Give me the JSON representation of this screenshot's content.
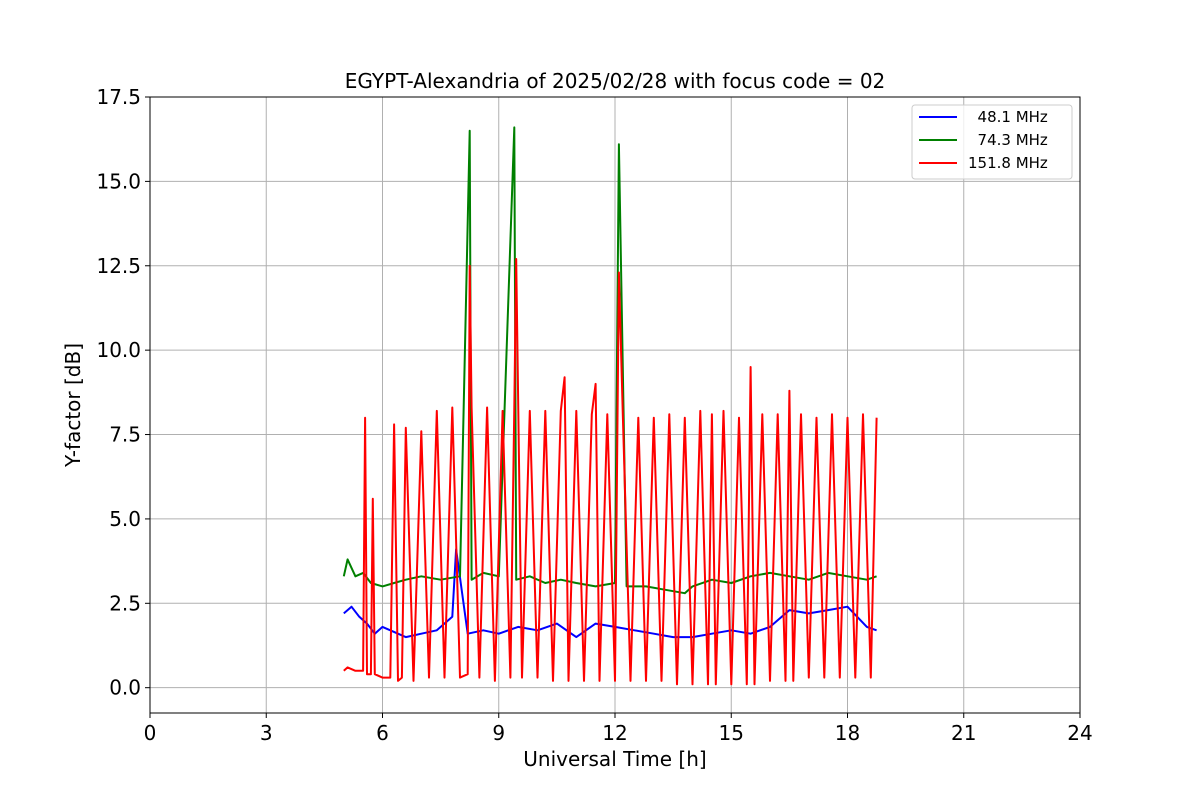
{
  "chart_data": {
    "type": "line",
    "title": "EGYPT-Alexandria of 2025/02/28 with focus code = 02",
    "xlabel": "Universal Time [h]",
    "ylabel": "Y-factor [dB]",
    "xlim": [
      0,
      24
    ],
    "ylim": [
      -0.75,
      17.5
    ],
    "xticks": [
      0,
      3,
      6,
      9,
      12,
      15,
      18,
      21,
      24
    ],
    "xtick_labels": [
      "0",
      "3",
      "6",
      "9",
      "12",
      "15",
      "18",
      "21",
      "24"
    ],
    "yticks": [
      0.0,
      2.5,
      5.0,
      7.5,
      10.0,
      12.5,
      15.0,
      17.5
    ],
    "ytick_labels": [
      "0.0",
      "2.5",
      "5.0",
      "7.5",
      "10.0",
      "12.5",
      "15.0",
      "17.5"
    ],
    "grid": true,
    "legend_position": "top-right",
    "series": [
      {
        "name": "48.1 MHz",
        "legend_label": "  48.1 MHz",
        "color": "#0000ff",
        "x": [
          5.0,
          5.2,
          5.4,
          5.6,
          5.8,
          6.0,
          6.2,
          6.4,
          6.6,
          7.0,
          7.4,
          7.8,
          7.9,
          8.2,
          8.6,
          9.0,
          9.5,
          10.0,
          10.5,
          11.0,
          11.5,
          12.0,
          12.5,
          13.0,
          13.5,
          14.0,
          14.5,
          15.0,
          15.5,
          16.0,
          16.5,
          17.0,
          17.5,
          18.0,
          18.5,
          18.75
        ],
        "values": [
          2.2,
          2.4,
          2.1,
          1.9,
          1.6,
          1.8,
          1.7,
          1.6,
          1.5,
          1.6,
          1.7,
          2.1,
          4.1,
          1.6,
          1.7,
          1.6,
          1.8,
          1.7,
          1.9,
          1.5,
          1.9,
          1.8,
          1.7,
          1.6,
          1.5,
          1.5,
          1.6,
          1.7,
          1.6,
          1.8,
          2.3,
          2.2,
          2.3,
          2.4,
          1.8,
          1.7
        ]
      },
      {
        "name": "74.3 MHz",
        "legend_label": "  74.3 MHz",
        "color": "#008000",
        "x": [
          5.0,
          5.1,
          5.3,
          5.5,
          5.7,
          6.0,
          6.3,
          6.6,
          7.0,
          7.5,
          8.0,
          8.25,
          8.3,
          8.6,
          9.0,
          9.4,
          9.45,
          9.8,
          10.2,
          10.6,
          11.0,
          11.5,
          12.0,
          12.1,
          12.3,
          12.8,
          13.3,
          13.8,
          14.0,
          14.5,
          15.0,
          15.5,
          16.0,
          16.5,
          17.0,
          17.5,
          18.0,
          18.5,
          18.75
        ],
        "values": [
          3.3,
          3.8,
          3.3,
          3.4,
          3.1,
          3.0,
          3.1,
          3.2,
          3.3,
          3.2,
          3.3,
          16.5,
          3.2,
          3.4,
          3.3,
          16.6,
          3.2,
          3.3,
          3.1,
          3.2,
          3.1,
          3.0,
          3.1,
          16.1,
          3.0,
          3.0,
          2.9,
          2.8,
          3.0,
          3.2,
          3.1,
          3.3,
          3.4,
          3.3,
          3.2,
          3.4,
          3.3,
          3.2,
          3.3
        ]
      },
      {
        "name": "151.8 MHz",
        "legend_label": "151.8 MHz",
        "color": "#ff0000",
        "x": [
          5.0,
          5.1,
          5.3,
          5.5,
          5.55,
          5.6,
          5.7,
          5.75,
          5.8,
          6.0,
          6.2,
          6.3,
          6.4,
          6.5,
          6.6,
          6.8,
          7.0,
          7.2,
          7.4,
          7.6,
          7.8,
          8.0,
          8.2,
          8.25,
          8.3,
          8.5,
          8.7,
          8.9,
          9.1,
          9.3,
          9.4,
          9.45,
          9.6,
          9.8,
          10.0,
          10.2,
          10.4,
          10.6,
          10.7,
          10.8,
          11.0,
          11.2,
          11.4,
          11.5,
          11.6,
          11.8,
          12.0,
          12.1,
          12.2,
          12.4,
          12.6,
          12.8,
          13.0,
          13.2,
          13.4,
          13.6,
          13.8,
          14.0,
          14.2,
          14.4,
          14.5,
          14.6,
          14.8,
          15.0,
          15.2,
          15.4,
          15.5,
          15.6,
          15.8,
          16.0,
          16.2,
          16.4,
          16.5,
          16.6,
          16.8,
          17.0,
          17.2,
          17.4,
          17.6,
          17.8,
          18.0,
          18.2,
          18.4,
          18.6,
          18.75
        ],
        "values": [
          0.5,
          0.6,
          0.5,
          0.5,
          8.0,
          0.4,
          0.4,
          5.6,
          0.4,
          0.3,
          0.3,
          7.8,
          0.2,
          0.3,
          7.7,
          0.2,
          7.6,
          0.3,
          8.2,
          0.3,
          8.3,
          0.3,
          0.4,
          12.5,
          8.3,
          0.3,
          8.3,
          0.2,
          8.2,
          0.3,
          8.3,
          12.7,
          0.3,
          8.2,
          0.3,
          8.2,
          0.2,
          8.2,
          9.2,
          0.2,
          8.2,
          0.2,
          8.1,
          9.0,
          0.2,
          8.1,
          0.2,
          12.3,
          8.1,
          0.2,
          8.0,
          0.2,
          8.0,
          0.2,
          8.1,
          0.1,
          8.0,
          0.1,
          8.2,
          0.1,
          8.1,
          0.1,
          8.2,
          0.1,
          8.0,
          0.1,
          9.5,
          0.1,
          8.1,
          0.2,
          8.1,
          0.2,
          8.8,
          0.2,
          8.1,
          0.3,
          8.0,
          0.3,
          8.1,
          0.3,
          8.0,
          0.3,
          8.1,
          0.3,
          8.0
        ]
      }
    ]
  }
}
